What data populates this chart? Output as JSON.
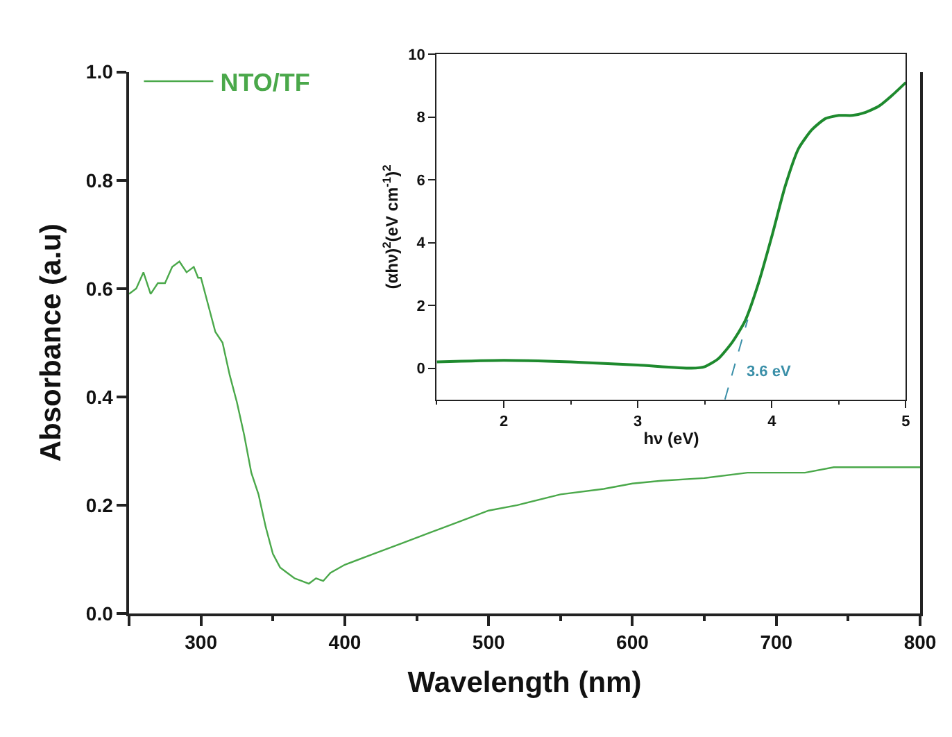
{
  "chart_data": [
    {
      "type": "line",
      "xlabel": "Wavelength (nm)",
      "ylabel": "Absorbance (a.u)",
      "legend": "top left",
      "grid": false,
      "marker": "none",
      "xlim": [
        250,
        800
      ],
      "xticks": [
        {
          "value": 250,
          "label": null
        },
        300,
        400,
        500,
        600,
        700,
        800
      ],
      "ylim": [
        0,
        1
      ],
      "yticks": [
        {
          "value": 0,
          "label": "0.0"
        },
        0.2,
        0.4,
        0.6,
        0.8,
        {
          "value": 1,
          "label": "1.0"
        }
      ],
      "x": [
        250,
        255,
        260,
        265,
        270,
        275,
        280,
        285,
        290,
        295,
        298,
        300,
        305,
        310,
        315,
        320,
        325,
        330,
        335,
        340,
        345,
        350,
        355,
        360,
        365,
        370,
        375,
        380,
        385,
        390,
        400,
        420,
        440,
        460,
        480,
        500,
        520,
        550,
        580,
        600,
        620,
        650,
        680,
        700,
        720,
        740,
        760,
        780,
        800
      ],
      "series": [
        {
          "name": "NTO/TF",
          "color": "#4aa84a",
          "line_style": "solid",
          "values": [
            0.59,
            0.6,
            0.63,
            0.59,
            0.61,
            0.61,
            0.64,
            0.65,
            0.63,
            0.64,
            0.62,
            0.62,
            0.57,
            0.52,
            0.5,
            0.44,
            0.39,
            0.33,
            0.26,
            0.22,
            0.16,
            0.11,
            0.085,
            0.075,
            0.065,
            0.06,
            0.055,
            0.065,
            0.06,
            0.075,
            0.09,
            0.11,
            0.13,
            0.15,
            0.17,
            0.19,
            0.2,
            0.22,
            0.23,
            0.24,
            0.245,
            0.25,
            0.26,
            0.26,
            0.26,
            0.27,
            0.27,
            0.27,
            0.27
          ]
        }
      ]
    },
    {
      "type": "line",
      "xlabel": "hν (eV)",
      "ylabel": "(αhν)$^{2}$(eV cm$^{-1}$)$^{2}$",
      "grid": false,
      "marker": "none",
      "xlim": [
        1.5,
        5
      ],
      "xticks": [
        2,
        3,
        4,
        5
      ],
      "ylim": [
        -1,
        10
      ],
      "yticks": [
        0,
        2,
        4,
        6,
        8,
        10
      ],
      "annotations": [
        "3.6 eV"
      ],
      "series": [
        {
          "color": "#1e8a2e",
          "line_style": "solid",
          "x": [
            1.5,
            2,
            2.5,
            3,
            3.4,
            3.5,
            3.6,
            3.7,
            3.8,
            3.9,
            4.0,
            4.1,
            4.2,
            4.3,
            4.4,
            4.5,
            4.6,
            4.7,
            4.8,
            4.9,
            5.0
          ],
          "values": [
            0.2,
            0.25,
            0.2,
            0.1,
            0.0,
            0.05,
            0.3,
            0.8,
            1.5,
            2.7,
            4.2,
            5.8,
            7.0,
            7.6,
            7.95,
            8.05,
            8.05,
            8.15,
            8.35,
            8.7,
            9.1
          ]
        },
        {
          "color": "#3a8fa8",
          "line_style": "dashed",
          "x": [
            3.65,
            3.82
          ],
          "values": [
            -1,
            1.55
          ]
        }
      ]
    }
  ]
}
